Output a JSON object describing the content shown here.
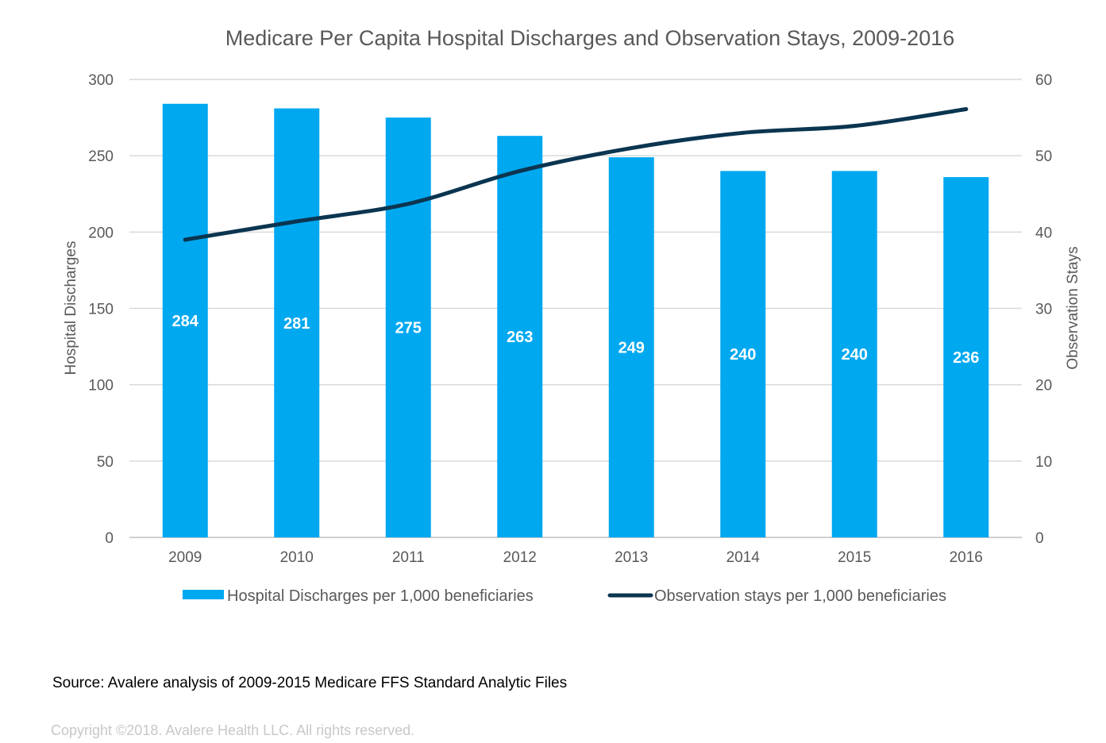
{
  "chart_data": {
    "type": "bar",
    "title": "Medicare Per Capita Hospital Discharges and Observation Stays, 2009-2016",
    "categories": [
      "2009",
      "2010",
      "2011",
      "2012",
      "2013",
      "2014",
      "2015",
      "2016"
    ],
    "series": [
      {
        "name": "Hospital Discharges per 1,000 beneficiaries",
        "type": "bar",
        "axis": "left",
        "color": "#00a8f0",
        "values": [
          284,
          281,
          275,
          263,
          249,
          240,
          240,
          236
        ],
        "data_labels": [
          "284",
          "281",
          "275",
          "263",
          "249",
          "240",
          "240",
          "236"
        ]
      },
      {
        "name": "Observation stays per 1,000 beneficiaries",
        "type": "line",
        "axis": "right",
        "color": "#0b3550",
        "values": [
          39,
          41.4,
          43.7,
          48,
          51,
          53,
          53.9,
          56.1
        ]
      }
    ],
    "y_left": {
      "label": "Hospital Discharges",
      "range": [
        0,
        300
      ],
      "ticks": [
        "0",
        "50",
        "100",
        "150",
        "200",
        "250",
        "300"
      ]
    },
    "y_right": {
      "label": "Observation Stays",
      "range": [
        0,
        60
      ],
      "ticks": [
        "0",
        "10",
        "20",
        "30",
        "40",
        "50",
        "60"
      ]
    },
    "grid": true,
    "legend_position": "bottom"
  },
  "notes": {
    "source": "Source: Avalere analysis of 2009-2015 Medicare FFS Standard Analytic Files",
    "copyright": "Copyright ©2018. Avalere Health LLC. All rights reserved."
  }
}
